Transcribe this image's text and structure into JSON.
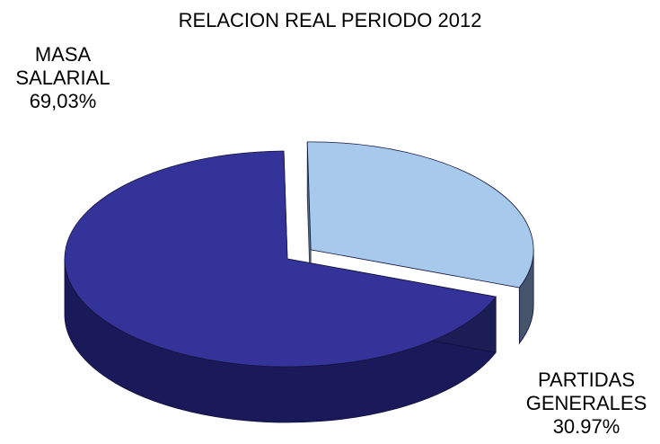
{
  "chart_data": {
    "type": "pie",
    "title": "RELACION REAL PERIODO 2012",
    "slices": [
      {
        "name_lines": [
          "MASA",
          "SALARIAL"
        ],
        "value_label": "69,03%",
        "value": 69.03,
        "color": "#333399",
        "side_color": "#1a1a5a",
        "exploded": false
      },
      {
        "name_lines": [
          "PARTIDAS",
          "GENERALES"
        ],
        "value_label": "30.97%",
        "value": 30.97,
        "color": "#a7c9ec",
        "side_color": "#44546a",
        "exploded": true
      }
    ]
  }
}
